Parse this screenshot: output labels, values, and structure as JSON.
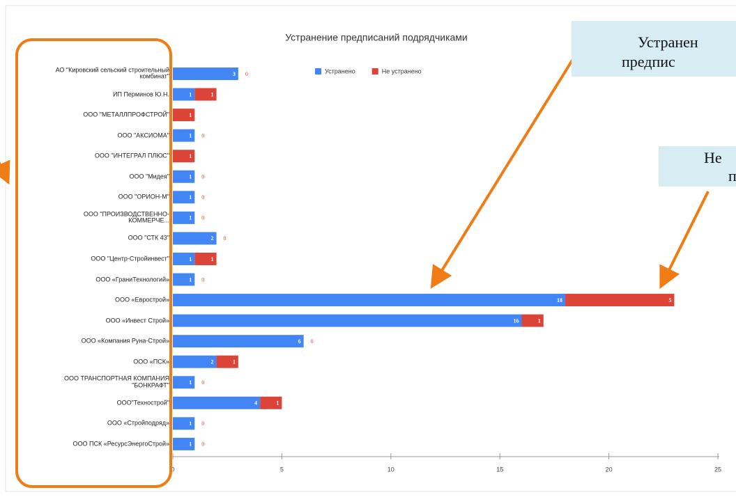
{
  "chart_data": {
    "type": "bar",
    "orientation": "horizontal",
    "stacked": true,
    "title": "Устранение предписаний подрядчиками",
    "categories": [
      "АО \"Кировский сельский строительный комбинат\"",
      "ИП Перминов Ю.Н.",
      "ООО \"МЕТАЛЛПРОФСТРОЙ\"",
      "ООО \"АКСИОМА\"",
      "ООО \"ИНТЕГРАЛ ПЛЮС\"",
      "ООО \"Мидея\"",
      "ООО \"ОРИОН-М\"",
      "ООО \"ПРОИЗВОДСТВЕННО-КОММЕРЧЕ...",
      "ООО \"СТК 43\"",
      "ООО \"Центр-Стройинвест\"",
      "ООО «ГраниТехнологий»",
      "ООО «Еврострой»",
      "ООО «Инвест Строй»",
      "ООО «Компания Руна-Строй»",
      "ООО «ПСК»",
      "ООО ТРАНСПОРТНАЯ КОМПАНИЯ \"БОНКРАФТ\"",
      "ООО\"Технострой\"",
      "ООО «Стройподряд»",
      "ООО ПСК «РесурсЭнергоСтрой»"
    ],
    "series": [
      {
        "name": "Устранено",
        "color": "#4285f4",
        "values": [
          3,
          1,
          0,
          1,
          0,
          1,
          1,
          1,
          2,
          1,
          1,
          18,
          16,
          6,
          2,
          1,
          4,
          1,
          1
        ]
      },
      {
        "name": "Не устранено",
        "color": "#db4437",
        "values": [
          0,
          1,
          1,
          0,
          1,
          0,
          0,
          0,
          0,
          1,
          0,
          5,
          1,
          0,
          1,
          0,
          1,
          0,
          0
        ]
      }
    ],
    "xlim": [
      0,
      25
    ],
    "xticks": [
      0,
      5,
      10,
      15,
      20,
      25
    ],
    "legend": "top",
    "annotations": [
      {
        "lines": [
          "Устранен",
          "предпис"
        ]
      },
      {
        "lines": [
          "Не",
          "п"
        ]
      }
    ]
  }
}
